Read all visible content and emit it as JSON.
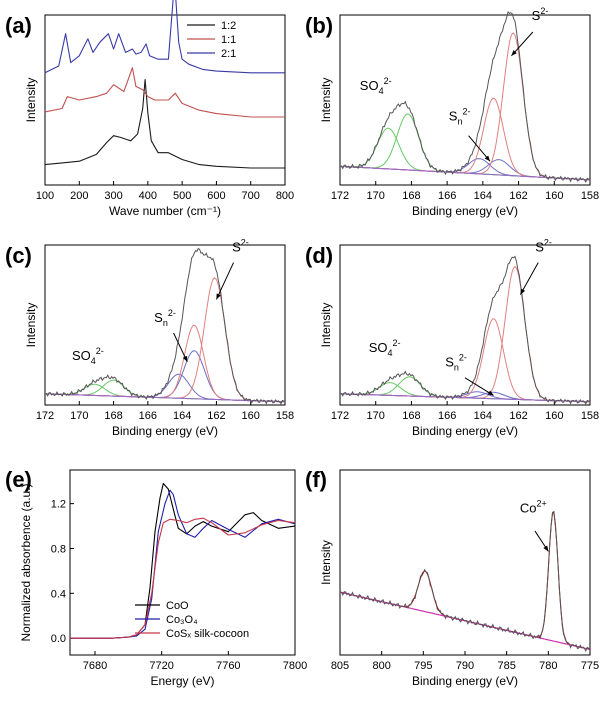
{
  "figure": {
    "panels": [
      "(a)",
      "(b)",
      "(c)",
      "(d)",
      "(e)",
      "(f)"
    ]
  },
  "chart_data": [
    {
      "id": "a",
      "type": "line",
      "label": "(a)",
      "xlabel": "Wave number (cm⁻¹)",
      "ylabel": "Intensity",
      "xlim": [
        100,
        800
      ],
      "ylim": [
        0,
        10
      ],
      "xticks": [
        100,
        200,
        300,
        400,
        500,
        600,
        700,
        800
      ],
      "legend_position": "top-right",
      "series": [
        {
          "name": "1:2",
          "color": "#1a1a1a",
          "x": [
            100,
            150,
            200,
            250,
            280,
            300,
            320,
            350,
            370,
            385,
            392,
            400,
            410,
            430,
            460,
            500,
            550,
            600,
            700,
            800
          ],
          "y": [
            1.2,
            1.3,
            1.4,
            1.8,
            2.5,
            2.9,
            2.8,
            2.6,
            3.0,
            4.5,
            6.2,
            4.2,
            2.6,
            1.9,
            1.9,
            1.5,
            1.2,
            1.1,
            1.0,
            1.0
          ]
        },
        {
          "name": "1:1",
          "color": "#c0504d",
          "x": [
            100,
            150,
            165,
            200,
            250,
            280,
            300,
            330,
            355,
            365,
            385,
            400,
            420,
            460,
            480,
            500,
            550,
            600,
            700,
            800
          ],
          "y": [
            4.3,
            4.5,
            5.2,
            5.0,
            5.2,
            5.4,
            5.9,
            5.5,
            6.9,
            5.8,
            5.6,
            5.2,
            5.0,
            5.0,
            5.4,
            4.8,
            4.4,
            4.2,
            4.0,
            4.0
          ]
        },
        {
          "name": "2:1",
          "color": "#3a3aa8",
          "x": [
            100,
            140,
            160,
            175,
            200,
            225,
            240,
            260,
            285,
            300,
            315,
            335,
            355,
            365,
            380,
            395,
            405,
            430,
            460,
            478,
            490,
            500,
            520,
            560,
            600,
            700,
            800
          ],
          "y": [
            6.6,
            7.0,
            8.9,
            7.2,
            7.6,
            8.6,
            7.8,
            8.4,
            8.9,
            8.0,
            8.9,
            7.8,
            8.0,
            7.7,
            7.8,
            8.3,
            7.6,
            7.4,
            7.4,
            12.0,
            8.4,
            7.4,
            7.1,
            6.8,
            6.7,
            6.6,
            6.6
          ]
        }
      ]
    },
    {
      "id": "b",
      "type": "line",
      "label": "(b)",
      "xlabel": "Binding energy (eV)",
      "ylabel": "Intensity",
      "xlim": [
        172,
        158
      ],
      "ylim": [
        0,
        10
      ],
      "xticks": [
        172,
        170,
        168,
        166,
        164,
        162,
        160,
        158
      ],
      "annotations": [
        {
          "text": "S",
          "sup": "2-",
          "x": 160.8,
          "y": 9.7
        },
        {
          "text": "SO",
          "sub": "4",
          "sup": "2-",
          "x": 170.0,
          "y": 5.6
        },
        {
          "text": "S",
          "sub": "n",
          "sup": "2-",
          "x": 165.3,
          "y": 3.8
        }
      ],
      "peaks": [
        {
          "name": "SO4 a",
          "color": "#66c966",
          "center": 169.3,
          "height": 2.4,
          "width": 0.6
        },
        {
          "name": "SO4 b",
          "color": "#66c966",
          "center": 168.2,
          "height": 3.3,
          "width": 0.6
        },
        {
          "name": "Sn a",
          "color": "#6e6ec8",
          "center": 164.2,
          "height": 0.9,
          "width": 0.6
        },
        {
          "name": "Sn b",
          "color": "#6e6ec8",
          "center": 163.1,
          "height": 0.9,
          "width": 0.6
        },
        {
          "name": "S2 a",
          "color": "#e08080",
          "center": 163.4,
          "height": 4.5,
          "width": 0.55
        },
        {
          "name": "S2 b",
          "color": "#e08080",
          "center": 162.3,
          "height": 8.4,
          "width": 0.55
        }
      ],
      "baseline": {
        "color": "#9966cc",
        "y_left": 1.1,
        "y_right": 0.3
      }
    },
    {
      "id": "c",
      "type": "line",
      "label": "(c)",
      "xlabel": "Binding energy (eV)",
      "ylabel": "Intensity",
      "xlim": [
        172,
        158
      ],
      "ylim": [
        0,
        10
      ],
      "xticks": [
        172,
        170,
        168,
        166,
        164,
        162,
        160,
        158
      ],
      "annotations": [
        {
          "text": "S",
          "sup": "2-",
          "x": 160.6,
          "y": 9.6
        },
        {
          "text": "SO",
          "sub": "4",
          "sup": "2-",
          "x": 169.5,
          "y": 2.8
        },
        {
          "text": "S",
          "sub": "n",
          "sup": "2-",
          "x": 165.0,
          "y": 5.2
        }
      ],
      "peaks": [
        {
          "name": "SO4 a",
          "color": "#66c966",
          "center": 169.1,
          "height": 0.7,
          "width": 0.6
        },
        {
          "name": "SO4 b",
          "color": "#66c966",
          "center": 168.0,
          "height": 1.0,
          "width": 0.6
        },
        {
          "name": "Sn a",
          "color": "#6e6ec8",
          "center": 164.2,
          "height": 1.5,
          "width": 0.6
        },
        {
          "name": "Sn b",
          "color": "#6e6ec8",
          "center": 163.3,
          "height": 3.0,
          "width": 0.6
        },
        {
          "name": "S2 a",
          "color": "#e08080",
          "center": 163.3,
          "height": 4.6,
          "width": 0.55
        },
        {
          "name": "S2 b",
          "color": "#e08080",
          "center": 162.1,
          "height": 7.6,
          "width": 0.6
        }
      ],
      "baseline": {
        "color": "#9966cc",
        "y_left": 0.7,
        "y_right": 0.2
      }
    },
    {
      "id": "d",
      "type": "line",
      "label": "(d)",
      "xlabel": "Binding energy (eV)",
      "ylabel": "Intensity",
      "xlim": [
        172,
        158
      ],
      "ylim": [
        0,
        10
      ],
      "xticks": [
        172,
        170,
        168,
        166,
        164,
        162,
        160,
        158
      ],
      "annotations": [
        {
          "text": "S",
          "sup": "2-",
          "x": 160.6,
          "y": 9.6
        },
        {
          "text": "SO",
          "sub": "4",
          "sup": "2-",
          "x": 169.5,
          "y": 3.3
        },
        {
          "text": "S",
          "sub": "n",
          "sup": "2-",
          "x": 165.5,
          "y": 2.4
        }
      ],
      "peaks": [
        {
          "name": "SO4 a",
          "color": "#66c966",
          "center": 169.2,
          "height": 0.8,
          "width": 0.6
        },
        {
          "name": "SO4 b",
          "color": "#66c966",
          "center": 168.1,
          "height": 1.2,
          "width": 0.6
        },
        {
          "name": "Sn a",
          "color": "#6e6ec8",
          "center": 164.3,
          "height": 0.4,
          "width": 0.6
        },
        {
          "name": "Sn b",
          "color": "#6e6ec8",
          "center": 163.4,
          "height": 0.4,
          "width": 0.6
        },
        {
          "name": "S2 a",
          "color": "#e08080",
          "center": 163.4,
          "height": 5.0,
          "width": 0.55
        },
        {
          "name": "S2 b",
          "color": "#e08080",
          "center": 162.2,
          "height": 8.3,
          "width": 0.55
        }
      ],
      "baseline": {
        "color": "#9966cc",
        "y_left": 0.7,
        "y_right": 0.2
      }
    },
    {
      "id": "e",
      "type": "line",
      "label": "(e)",
      "xlabel": "Energy (eV)",
      "ylabel": "Normalized absorbence (a.u.)",
      "xlim": [
        7665,
        7800
      ],
      "ylim": [
        -0.15,
        1.5
      ],
      "xticks": [
        7680,
        7720,
        7760,
        7800
      ],
      "yticks": [
        0.0,
        0.4,
        0.8,
        1.2
      ],
      "legend_position": "bottom-center",
      "series": [
        {
          "name": "CoO",
          "color": "#000000",
          "x": [
            7665,
            7690,
            7700,
            7705,
            7710,
            7713,
            7716,
            7719,
            7721,
            7724,
            7727,
            7730,
            7735,
            7740,
            7745,
            7750,
            7760,
            7770,
            7775,
            7780,
            7790,
            7800
          ],
          "y": [
            0.0,
            0.0,
            0.01,
            0.03,
            0.12,
            0.45,
            0.95,
            1.25,
            1.38,
            1.33,
            1.15,
            0.98,
            0.93,
            1.0,
            1.04,
            1.0,
            0.95,
            1.1,
            1.12,
            1.05,
            0.98,
            1.0
          ]
        },
        {
          "name": "Co₃O₄",
          "color": "#1f1fa8",
          "x": [
            7665,
            7690,
            7700,
            7705,
            7710,
            7714,
            7718,
            7722,
            7725,
            7727,
            7730,
            7735,
            7740,
            7745,
            7750,
            7760,
            7770,
            7780,
            7790,
            7800
          ],
          "y": [
            0.0,
            0.0,
            0.01,
            0.02,
            0.08,
            0.35,
            0.95,
            1.2,
            1.32,
            1.28,
            1.1,
            0.93,
            0.9,
            0.98,
            1.05,
            0.97,
            0.9,
            1.02,
            1.06,
            1.02
          ]
        },
        {
          "name": "CoSₓ silk-cocoon",
          "color": "#c8364a",
          "x": [
            7665,
            7690,
            7700,
            7705,
            7710,
            7714,
            7718,
            7721,
            7725,
            7730,
            7735,
            7740,
            7745,
            7750,
            7760,
            7770,
            7780,
            7790,
            7800
          ],
          "y": [
            0.0,
            0.0,
            0.01,
            0.03,
            0.12,
            0.4,
            0.85,
            1.03,
            1.06,
            1.05,
            1.03,
            1.06,
            1.07,
            1.03,
            0.92,
            0.94,
            1.01,
            1.05,
            1.03
          ]
        }
      ]
    },
    {
      "id": "f",
      "type": "line",
      "label": "(f)",
      "xlabel": "Binding energy (eV)",
      "ylabel": "Intensity",
      "xlim": [
        805,
        775
      ],
      "ylim": [
        0,
        10
      ],
      "xticks": [
        805,
        800,
        795,
        790,
        785,
        780,
        775
      ],
      "annotations": [
        {
          "text": "Co",
          "sup": "2+",
          "x": 781.8,
          "y": 7.7
        }
      ],
      "peaks": [
        {
          "name": "Co 2p1/2",
          "color": "#c00000",
          "center": 794.8,
          "height": 2.2,
          "width": 0.8
        },
        {
          "name": "Co 2p3/2",
          "color": "#c00000",
          "center": 779.4,
          "height": 7.0,
          "width": 0.55
        }
      ],
      "baseline": {
        "color": "#cc33cc",
        "y_left": 3.4,
        "y_right": 0.3
      }
    }
  ]
}
